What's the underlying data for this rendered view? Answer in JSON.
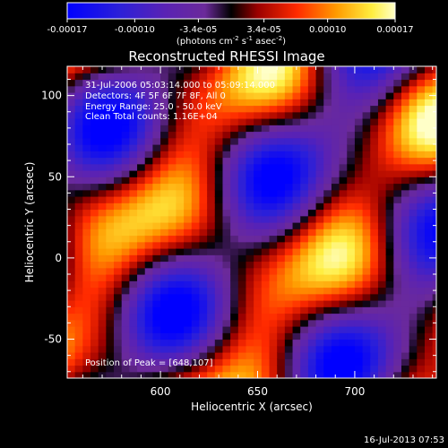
{
  "colorbar": {
    "tick_labels": [
      "-0.00017",
      "-0.00010",
      "-3.4e-05",
      "3.4e-05",
      "0.00010",
      "0.00017"
    ],
    "tick_values": [
      -0.00017,
      -0.0001,
      -3.4e-05,
      3.4e-05,
      0.0001,
      0.00017
    ],
    "range": [
      -0.00017,
      0.00017
    ],
    "unit_label": {
      "open": "(photons cm",
      "exp1": "-2",
      "mid1": " s",
      "exp2": "-1",
      "mid2": " asec",
      "exp3": "-2",
      "close": ")"
    }
  },
  "chart_data": {
    "type": "heatmap",
    "title": "Reconstructed RHESSI Image",
    "xlabel": "Heliocentric X (arcsec)",
    "ylabel": "Heliocentric Y (arcsec)",
    "xlim": [
      552,
      742
    ],
    "ylim": [
      -74,
      118
    ],
    "x_ticks": [
      600,
      650,
      700
    ],
    "y_ticks": [
      -50,
      0,
      50,
      100
    ],
    "colormap": "rainbow-black-hot",
    "annotations": [
      "31-Jul-2006 05:03:14.000 to 05:09:14.000",
      "Detectors: 4F 5F 6F 7F 8F, All 0",
      "Energy Range: 25.0 - 50.0 keV",
      "Clean     Total counts: 1.16E+04"
    ],
    "peak_label": "Position of Peak = [648,107]",
    "peak": [
      648,
      107
    ],
    "pattern": {
      "kx": 0.0574,
      "ky": -0.0377,
      "amp1": 1.0,
      "kx2": 0.0196,
      "ky2": 0.0601,
      "amp2": 0.6,
      "phase2": 1.1,
      "kx3": 0.0883,
      "ky3": 0.0283,
      "amp3": 0.3,
      "phase3": 2.3
    }
  },
  "footer": {
    "timestamp": "16-Jul-2013 07:53"
  }
}
